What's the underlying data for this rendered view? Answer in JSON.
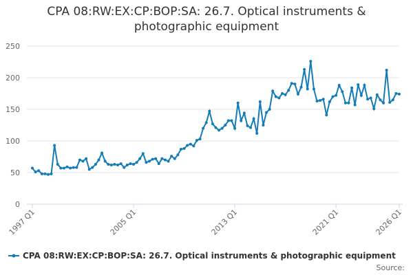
{
  "chart_data": {
    "type": "line",
    "title": "CPA 08:RW:EX:CP:BOP:SA: 26.7. Optical instruments & photographic equipment",
    "categories": [
      "1997 Q1",
      null,
      null,
      null,
      null,
      null,
      null,
      null,
      null,
      null,
      null,
      null,
      null,
      null,
      null,
      null,
      null,
      null,
      null,
      null,
      null,
      null,
      null,
      null,
      null,
      null,
      null,
      null,
      null,
      null,
      null,
      null,
      "2005 Q1",
      null,
      null,
      null,
      null,
      null,
      null,
      null,
      null,
      null,
      null,
      null,
      null,
      null,
      null,
      null,
      null,
      null,
      null,
      null,
      null,
      null,
      null,
      null,
      null,
      null,
      null,
      null,
      null,
      null,
      null,
      null,
      "2013 Q1",
      null,
      null,
      null,
      null,
      null,
      null,
      null,
      null,
      null,
      null,
      null,
      null,
      null,
      null,
      null,
      null,
      null,
      null,
      null,
      null,
      null,
      null,
      null,
      null,
      null,
      null,
      null,
      null,
      null,
      null,
      null,
      "2021 Q1",
      null,
      null,
      null,
      null,
      null,
      null,
      null,
      null,
      null,
      null,
      null,
      null,
      null,
      null,
      null,
      null,
      null,
      null,
      null,
      "2026 Q1"
    ],
    "series": [
      {
        "name": "CPA 08:RW:EX:CP:BOP:SA: 26.7. Optical instruments & photographic equipment",
        "color": "#137bb8",
        "values": [
          57,
          51,
          53,
          48,
          48,
          47,
          48,
          93,
          63,
          57,
          57,
          59,
          57,
          58,
          58,
          70,
          68,
          72,
          55,
          58,
          63,
          70,
          81,
          68,
          63,
          62,
          63,
          62,
          64,
          58,
          62,
          64,
          63,
          66,
          72,
          80,
          66,
          68,
          71,
          72,
          64,
          72,
          70,
          68,
          76,
          72,
          78,
          87,
          88,
          93,
          95,
          92,
          101,
          103,
          120,
          129,
          147,
          127,
          121,
          117,
          120,
          125,
          132,
          132,
          120,
          160,
          132,
          144,
          124,
          121,
          135,
          112,
          162,
          125,
          145,
          150,
          179,
          170,
          168,
          175,
          173,
          180,
          191,
          190,
          174,
          185,
          213,
          182,
          226,
          182,
          163,
          164,
          166,
          141,
          162,
          170,
          172,
          188,
          178,
          160,
          160,
          184,
          157,
          189,
          172,
          188,
          166,
          168,
          151,
          173,
          165,
          160,
          212,
          161,
          165,
          175,
          174
        ]
      }
    ],
    "ylim": [
      0,
      250
    ],
    "yticks": [
      0,
      50,
      100,
      150,
      200,
      250
    ],
    "grid": true,
    "source": "Source:"
  }
}
